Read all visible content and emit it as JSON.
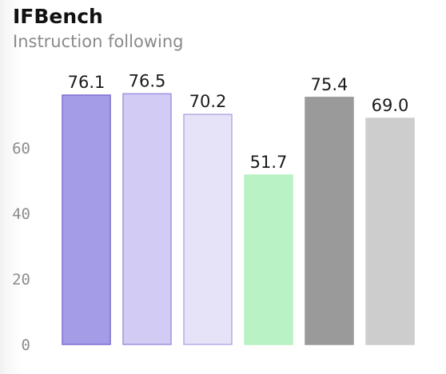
{
  "header": {
    "title": "IFBench",
    "subtitle": "Instruction following"
  },
  "chart_data": {
    "type": "bar",
    "title": "IFBench",
    "subtitle": "Instruction following",
    "xlabel": "",
    "ylabel": "",
    "ylim": [
      0,
      78
    ],
    "yticks": [
      0,
      20,
      40,
      60
    ],
    "grid": false,
    "values": [
      76.1,
      76.5,
      70.2,
      51.7,
      75.4,
      69.0
    ],
    "value_labels": [
      "76.1",
      "76.5",
      "70.2",
      "51.7",
      "75.4",
      "69.0"
    ],
    "groups": [
      0,
      0,
      0,
      0,
      1,
      1
    ],
    "colors": [
      {
        "fill": "#a59ce8",
        "stroke": "#7a6ed2"
      },
      {
        "fill": "#d2cbf4",
        "stroke": "#9d93e0"
      },
      {
        "fill": "#e6e3f8",
        "stroke": "#b3abe8"
      },
      {
        "fill": "#b9f2c4",
        "stroke": "#b9f2c4"
      },
      {
        "fill": "#9a9a9a",
        "stroke": "#9a9a9a"
      },
      {
        "fill": "#cdcdcd",
        "stroke": "#cdcdcd"
      }
    ]
  }
}
